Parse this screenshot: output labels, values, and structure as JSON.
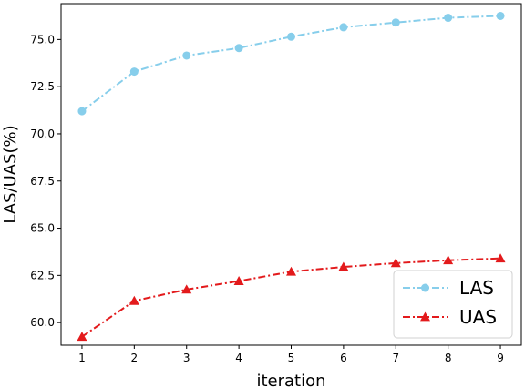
{
  "chart_data": {
    "type": "line",
    "xlabel": "iteration",
    "ylabel": "LAS/UAS(%)",
    "x": [
      1,
      2,
      3,
      4,
      5,
      6,
      7,
      8,
      9
    ],
    "xticks": [
      "1",
      "2",
      "3",
      "4",
      "5",
      "6",
      "7",
      "8",
      "9"
    ],
    "yticks": [
      "60.0",
      "62.5",
      "65.0",
      "67.5",
      "70.0",
      "72.5",
      "75.0"
    ],
    "ylim": [
      58.8,
      76.9
    ],
    "xlim": [
      0.6,
      9.4
    ],
    "grid": false,
    "legend_position": "lower-right",
    "series": [
      {
        "name": "LAS",
        "color": "#87CEEB",
        "marker": "circle",
        "linestyle": "dashdot",
        "values": [
          71.2,
          73.3,
          74.15,
          74.55,
          75.15,
          75.65,
          75.9,
          76.15,
          76.25
        ]
      },
      {
        "name": "UAS",
        "color": "#E31A1C",
        "marker": "triangle",
        "linestyle": "dashdot",
        "values": [
          59.25,
          61.15,
          61.75,
          62.2,
          62.7,
          62.95,
          63.15,
          63.3,
          63.4
        ]
      }
    ]
  }
}
